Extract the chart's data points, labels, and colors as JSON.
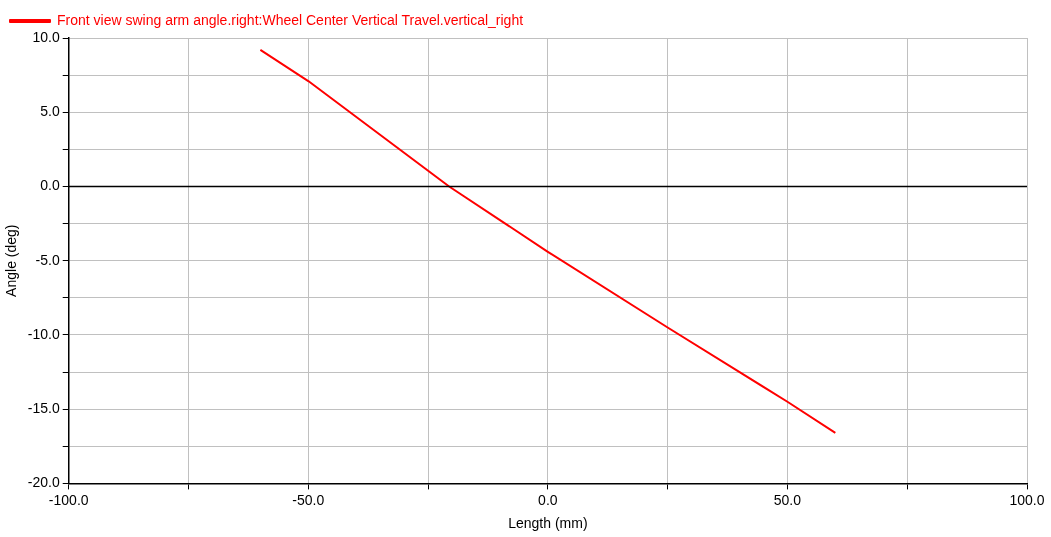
{
  "chart_data": {
    "type": "line",
    "xlabel": "Length (mm)",
    "ylabel": "Angle (deg)",
    "x": [
      -60,
      -50,
      -20.6,
      0,
      25,
      50,
      60
    ],
    "series": [
      {
        "name": "Front view swing arm angle.right:Wheel Center Vertical Travel.vertical_right",
        "color": "#ff0000",
        "values": [
          9.2,
          7.1,
          0,
          -4.4,
          -9.5,
          -14.5,
          -16.6
        ]
      }
    ],
    "xlim": [
      -100,
      100
    ],
    "xticks": [
      {
        "value": -100,
        "label": "-100.0"
      },
      {
        "value": -75,
        "label": null
      },
      {
        "value": -50,
        "label": "-50.0"
      },
      {
        "value": -25,
        "label": null
      },
      {
        "value": 0,
        "label": "0.0"
      },
      {
        "value": 25,
        "label": null
      },
      {
        "value": 50,
        "label": "50.0"
      },
      {
        "value": 75,
        "label": null
      },
      {
        "value": 100,
        "label": "100.0"
      }
    ],
    "ylim": [
      -20,
      10
    ],
    "yticks": [
      {
        "value": -20,
        "label": "-20.0"
      },
      {
        "value": -17.5,
        "label": null
      },
      {
        "value": -15,
        "label": "-15.0"
      },
      {
        "value": -12.5,
        "label": null
      },
      {
        "value": -10,
        "label": "-10.0"
      },
      {
        "value": -7.5,
        "label": null
      },
      {
        "value": -5,
        "label": "-5.0"
      },
      {
        "value": -2.5,
        "label": null
      },
      {
        "value": 0,
        "label": "0.0"
      },
      {
        "value": 2.5,
        "label": null
      },
      {
        "value": 5,
        "label": "5.0"
      },
      {
        "value": 7.5,
        "label": null
      },
      {
        "value": 10,
        "label": "10.0"
      }
    ],
    "ref_lines": [
      {
        "axis": "y",
        "value": 0,
        "color": "#000000"
      }
    ],
    "grid": true,
    "legend": "top left",
    "marker": "none",
    "line_style": "solid"
  }
}
